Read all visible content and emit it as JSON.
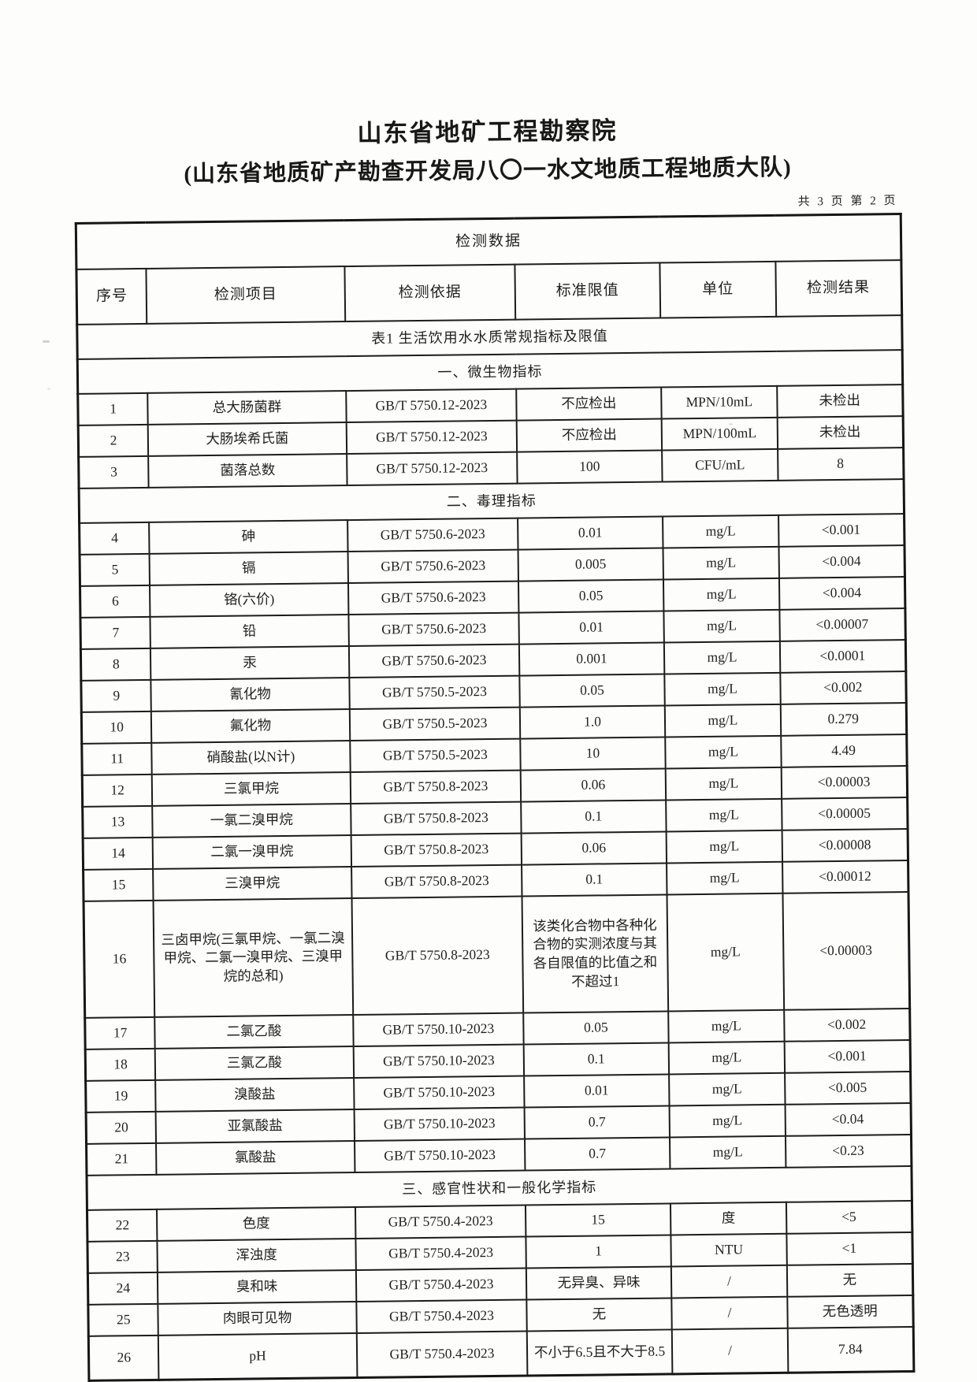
{
  "header": {
    "title": "山东省地矿工程勘察院",
    "subtitle": "(山东省地质矿产勘查开发局八〇一水文地质工程地质大队)",
    "page_indicator": "共 3 页 第 2 页"
  },
  "table": {
    "title": "检测数据",
    "columns": [
      "序号",
      "检测项目",
      "检测依据",
      "标准限值",
      "单位",
      "检测结果"
    ],
    "caption": "表1 生活饮用水水质常规指标及限值",
    "rows": [
      {
        "type": "section",
        "label": "一、微生物指标"
      },
      {
        "type": "data",
        "no": "1",
        "item": "总大肠菌群",
        "basis": "GB/T 5750.12-2023",
        "limit": "不应检出",
        "unit": "MPN/10mL",
        "result": "未检出"
      },
      {
        "type": "data",
        "no": "2",
        "item": "大肠埃希氏菌",
        "basis": "GB/T 5750.12-2023",
        "limit": "不应检出",
        "unit": "MPN/100mL",
        "result": "未检出"
      },
      {
        "type": "data",
        "no": "3",
        "item": "菌落总数",
        "basis": "GB/T 5750.12-2023",
        "limit": "100",
        "unit": "CFU/mL",
        "result": "8"
      },
      {
        "type": "section",
        "label": "二、毒理指标"
      },
      {
        "type": "data",
        "no": "4",
        "item": "砷",
        "basis": "GB/T 5750.6-2023",
        "limit": "0.01",
        "unit": "mg/L",
        "result": "<0.001"
      },
      {
        "type": "data",
        "no": "5",
        "item": "镉",
        "basis": "GB/T 5750.6-2023",
        "limit": "0.005",
        "unit": "mg/L",
        "result": "<0.004"
      },
      {
        "type": "data",
        "no": "6",
        "item": "铬(六价)",
        "basis": "GB/T 5750.6-2023",
        "limit": "0.05",
        "unit": "mg/L",
        "result": "<0.004"
      },
      {
        "type": "data",
        "no": "7",
        "item": "铅",
        "basis": "GB/T 5750.6-2023",
        "limit": "0.01",
        "unit": "mg/L",
        "result": "<0.00007"
      },
      {
        "type": "data",
        "no": "8",
        "item": "汞",
        "basis": "GB/T 5750.6-2023",
        "limit": "0.001",
        "unit": "mg/L",
        "result": "<0.0001"
      },
      {
        "type": "data",
        "no": "9",
        "item": "氰化物",
        "basis": "GB/T 5750.5-2023",
        "limit": "0.05",
        "unit": "mg/L",
        "result": "<0.002"
      },
      {
        "type": "data",
        "no": "10",
        "item": "氟化物",
        "basis": "GB/T 5750.5-2023",
        "limit": "1.0",
        "unit": "mg/L",
        "result": "0.279"
      },
      {
        "type": "data",
        "no": "11",
        "item": "硝酸盐(以N计)",
        "basis": "GB/T 5750.5-2023",
        "limit": "10",
        "unit": "mg/L",
        "result": "4.49"
      },
      {
        "type": "data",
        "no": "12",
        "item": "三氯甲烷",
        "basis": "GB/T 5750.8-2023",
        "limit": "0.06",
        "unit": "mg/L",
        "result": "<0.00003"
      },
      {
        "type": "data",
        "no": "13",
        "item": "一氯二溴甲烷",
        "basis": "GB/T 5750.8-2023",
        "limit": "0.1",
        "unit": "mg/L",
        "result": "<0.00005"
      },
      {
        "type": "data",
        "no": "14",
        "item": "二氯一溴甲烷",
        "basis": "GB/T 5750.8-2023",
        "limit": "0.06",
        "unit": "mg/L",
        "result": "<0.00008"
      },
      {
        "type": "data",
        "no": "15",
        "item": "三溴甲烷",
        "basis": "GB/T 5750.8-2023",
        "limit": "0.1",
        "unit": "mg/L",
        "result": "<0.00012"
      },
      {
        "type": "data",
        "no": "16",
        "item": "三卤甲烷(三氯甲烷、一氯二溴甲烷、二氯一溴甲烷、三溴甲烷的总和)",
        "basis": "GB/T 5750.8-2023",
        "limit": "该类化合物中各种化合物的实测浓度与其各自限值的比值之和不超过1",
        "unit": "mg/L",
        "result": "<0.00003"
      },
      {
        "type": "data",
        "no": "17",
        "item": "二氯乙酸",
        "basis": "GB/T 5750.10-2023",
        "limit": "0.05",
        "unit": "mg/L",
        "result": "<0.002"
      },
      {
        "type": "data",
        "no": "18",
        "item": "三氯乙酸",
        "basis": "GB/T 5750.10-2023",
        "limit": "0.1",
        "unit": "mg/L",
        "result": "<0.001"
      },
      {
        "type": "data",
        "no": "19",
        "item": "溴酸盐",
        "basis": "GB/T 5750.10-2023",
        "limit": "0.01",
        "unit": "mg/L",
        "result": "<0.005"
      },
      {
        "type": "data",
        "no": "20",
        "item": "亚氯酸盐",
        "basis": "GB/T 5750.10-2023",
        "limit": "0.7",
        "unit": "mg/L",
        "result": "<0.04"
      },
      {
        "type": "data",
        "no": "21",
        "item": "氯酸盐",
        "basis": "GB/T 5750.10-2023",
        "limit": "0.7",
        "unit": "mg/L",
        "result": "<0.23"
      },
      {
        "type": "section",
        "label": "三、感官性状和一般化学指标"
      },
      {
        "type": "data",
        "no": "22",
        "item": "色度",
        "basis": "GB/T 5750.4-2023",
        "limit": "15",
        "unit": "度",
        "result": "<5"
      },
      {
        "type": "data",
        "no": "23",
        "item": "浑浊度",
        "basis": "GB/T 5750.4-2023",
        "limit": "1",
        "unit": "NTU",
        "result": "<1"
      },
      {
        "type": "data",
        "no": "24",
        "item": "臭和味",
        "basis": "GB/T 5750.4-2023",
        "limit": "无异臭、异味",
        "unit": "/",
        "result": "无"
      },
      {
        "type": "data",
        "no": "25",
        "item": "肉眼可见物",
        "basis": "GB/T 5750.4-2023",
        "limit": "无",
        "unit": "/",
        "result": "无色透明"
      },
      {
        "type": "data",
        "no": "26",
        "item": "pH",
        "basis": "GB/T 5750.4-2023",
        "limit": "不小于6.5且不大于8.5",
        "unit": "/",
        "result": "7.84"
      }
    ]
  }
}
